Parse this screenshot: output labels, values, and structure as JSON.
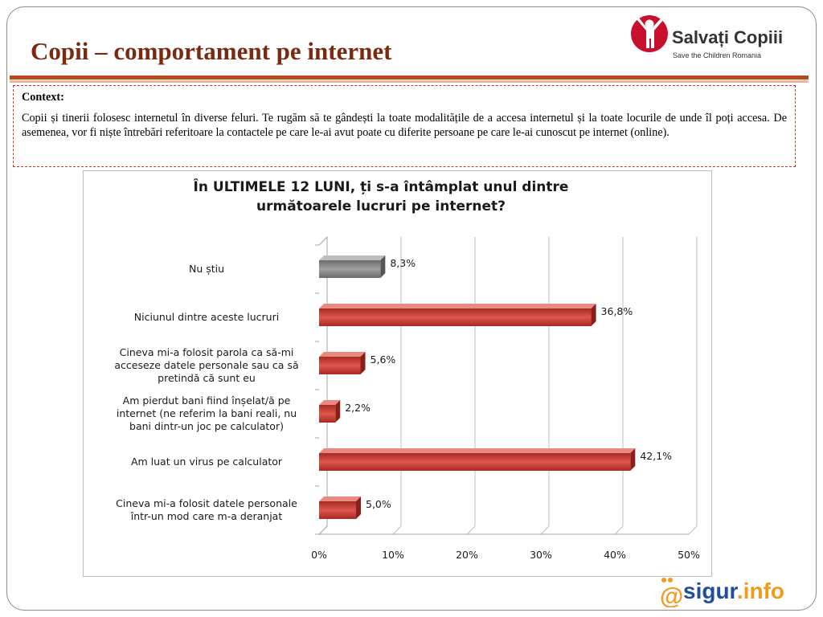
{
  "slide": {
    "title": "Copii – comportament pe internet"
  },
  "logo": {
    "name": "Salvați Copiii",
    "subtitle": "Save the Children Romania",
    "brand_color": "#c8102e"
  },
  "context": {
    "heading": "Context:",
    "text": "Copii și tinerii folosesc internetul în diverse feluri. Te rugăm să te gândești la toate modalitățile de a accesa internetul și la toate locurile de unde îl poți accesa.  De asemenea, vor fi niște întrebări referitoare la contactele pe care le-ai avut poate cu diferite persoane pe care le-ai cunoscut pe internet (online)."
  },
  "footer_logo": {
    "at": "@",
    "main": "sigur",
    "suffix": ".info",
    "main_color": "#1f4e9c",
    "accent_color": "#f29a1f"
  },
  "chart_data": {
    "type": "bar",
    "orientation": "horizontal",
    "title_lines": [
      "În ULTIMELE 12 LUNI, ți s-a întâmplat unul dintre",
      "următoarele lucruri pe internet?"
    ],
    "categories": [
      [
        "Nu știu"
      ],
      [
        "Niciunul dintre aceste lucruri"
      ],
      [
        "Cineva mi-a folosit parola ca să-mi",
        "acceseze datele personale sau ca să",
        "pretindă că sunt eu"
      ],
      [
        "Am pierdut bani fiind înșelat/ă pe",
        "internet (ne referim la bani reali, nu",
        "bani dintr-un joc pe calculator)"
      ],
      [
        "Am luat un virus pe calculator"
      ],
      [
        "Cineva mi-a folosit datele personale",
        "într-un mod care m-a deranjat"
      ]
    ],
    "values": [
      8.3,
      36.8,
      5.6,
      2.2,
      42.1,
      5.0
    ],
    "value_labels": [
      "8,3%",
      "36,8%",
      "5,6%",
      "2,2%",
      "42,1%",
      "5,0%"
    ],
    "bar_colors": [
      "#808080",
      "#c0392f",
      "#c0392f",
      "#c0392f",
      "#c0392f",
      "#c0392f"
    ],
    "xlim": [
      0,
      50
    ],
    "ticks": [
      0,
      10,
      20,
      30,
      40,
      50
    ],
    "tick_labels": [
      "0%",
      "10%",
      "20%",
      "30%",
      "40%",
      "50%"
    ],
    "grid": true,
    "legend": "none"
  }
}
